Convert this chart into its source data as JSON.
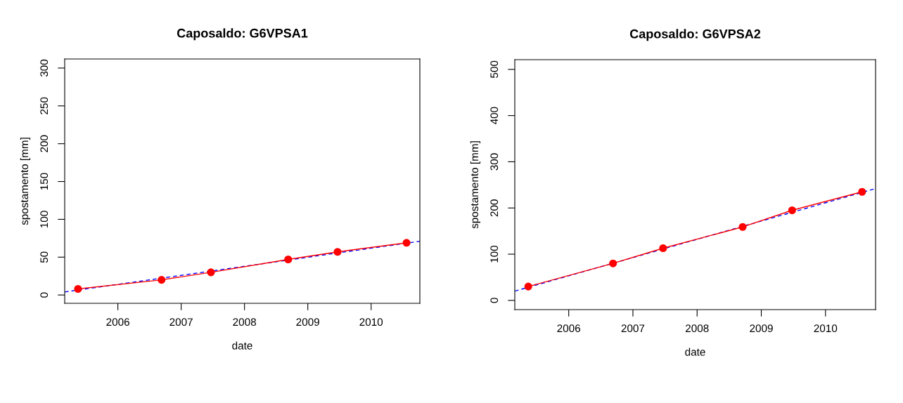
{
  "chart_data": [
    {
      "type": "line",
      "title": "Caposaldo: G6VPSA1",
      "xlabel": "date",
      "ylabel": "spostamento [mm]",
      "xlim": [
        2005.16,
        2010.77
      ],
      "xticks": [
        2006,
        2007,
        2008,
        2009,
        2010
      ],
      "ylim": [
        -11,
        312
      ],
      "yticks": [
        0,
        50,
        100,
        150,
        200,
        250,
        300
      ],
      "grid": false,
      "legend": false,
      "series": [
        {
          "color": "#ff0000",
          "marker": "circle",
          "line_style": "solid",
          "x": [
            2005.37,
            2006.69,
            2007.47,
            2008.69,
            2009.47,
            2010.56
          ],
          "values": [
            8,
            20,
            30,
            47,
            57,
            69
          ]
        },
        {
          "color": "#0000ff",
          "marker": "none",
          "line_style": "dashed",
          "x": [
            2005.16,
            2010.77
          ],
          "values": [
            4,
            71
          ]
        }
      ]
    },
    {
      "type": "line",
      "title": "Caposaldo: G6VPSA2",
      "xlabel": "date",
      "ylabel": "spostamento [mm]",
      "xlim": [
        2005.16,
        2010.78
      ],
      "xticks": [
        2006,
        2007,
        2008,
        2009,
        2010
      ],
      "ylim": [
        -20,
        521
      ],
      "yticks": [
        0,
        100,
        200,
        300,
        400,
        500
      ],
      "grid": false,
      "legend": false,
      "series": [
        {
          "color": "#ff0000",
          "marker": "circle",
          "line_style": "solid",
          "x": [
            2005.37,
            2006.69,
            2007.47,
            2008.71,
            2009.48,
            2010.57
          ],
          "values": [
            30,
            80,
            113,
            159,
            195,
            235
          ]
        },
        {
          "color": "#0000ff",
          "marker": "none",
          "line_style": "dashed",
          "x": [
            2005.16,
            2010.78
          ],
          "values": [
            20,
            242
          ]
        }
      ]
    }
  ]
}
